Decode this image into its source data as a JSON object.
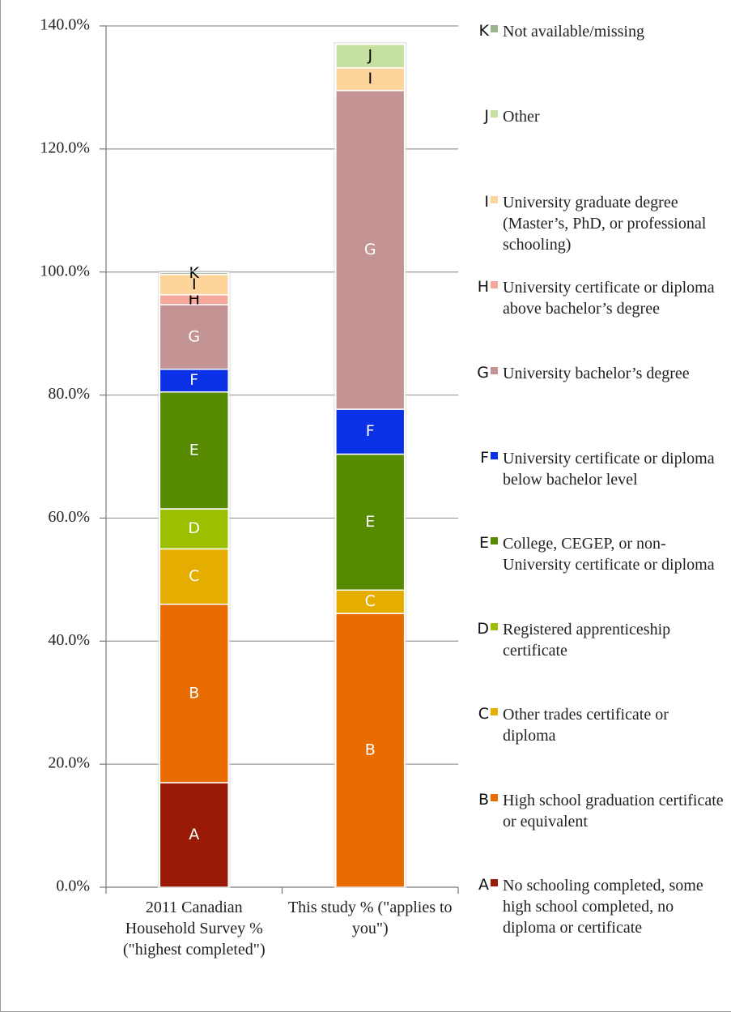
{
  "chart_data": {
    "type": "stacked_bar",
    "categories": [
      "2011 Canadian Household Survey % (\"highest completed\")",
      "This study % (\"applies to you\")"
    ],
    "ylim": [
      0,
      140
    ],
    "yticks": [
      {
        "value": 0,
        "label": "0.0%"
      },
      {
        "value": 20,
        "label": "20.0%"
      },
      {
        "value": 40,
        "label": "40.0%"
      },
      {
        "value": 60,
        "label": "60.0%"
      },
      {
        "value": 80,
        "label": "80.0%"
      },
      {
        "value": 100,
        "label": "100.0%"
      },
      {
        "value": 120,
        "label": "120.0%"
      },
      {
        "value": 140,
        "label": "140.0%"
      }
    ],
    "grid": true,
    "legend": "right",
    "series": [
      {
        "key": "A",
        "name": "No schooling completed, some high school completed, no diploma or certificate",
        "color": "#9a1a08",
        "label_color": "#ffffff",
        "values": [
          17.0,
          0
        ]
      },
      {
        "key": "B",
        "name": "High school graduation certificate or equivalent",
        "color": "#e86c00",
        "label_color": "#ffffff",
        "values": [
          29.0,
          44.5
        ]
      },
      {
        "key": "C",
        "name": "Other trades certificate or diploma",
        "color": "#e5ad00",
        "label_color": "#ffffff",
        "values": [
          9.0,
          3.8
        ]
      },
      {
        "key": "D",
        "name": "Registered apprenticeship certificate",
        "color": "#9cbf00",
        "label_color": "#ffffff",
        "values": [
          6.5,
          0
        ]
      },
      {
        "key": "E",
        "name": "College, CEGEP, or non-University certificate or diploma",
        "color": "#568a00",
        "label_color": "#ffffff",
        "values": [
          19.0,
          22.1
        ]
      },
      {
        "key": "F",
        "name": "University certificate or diploma below bachelor level",
        "color": "#0a31e5",
        "label_color": "#ffffff",
        "values": [
          3.7,
          7.3
        ]
      },
      {
        "key": "G",
        "name": "University bachelor’s degree",
        "color": "#c49494",
        "label_color": "#ffffff",
        "values": [
          10.5,
          51.8
        ]
      },
      {
        "key": "H",
        "name": "University certificate or diploma above bachelor’s degree",
        "color": "#f6a99a",
        "label_color": "#000000",
        "values": [
          1.6,
          0
        ]
      },
      {
        "key": "I",
        "name": "University graduate degree (Master’s, PhD, or professional schooling)",
        "color": "#fdd49a",
        "label_color": "#000000",
        "values": [
          3.3,
          3.7
        ]
      },
      {
        "key": "J",
        "name": "Other",
        "color": "#c5e0a0",
        "label_color": "#000000",
        "values": [
          0,
          3.8
        ]
      },
      {
        "key": "K",
        "name": "Not available/missing",
        "color": "#9cb48e",
        "label_color": "#000000",
        "values": [
          0.3,
          0
        ]
      }
    ]
  }
}
